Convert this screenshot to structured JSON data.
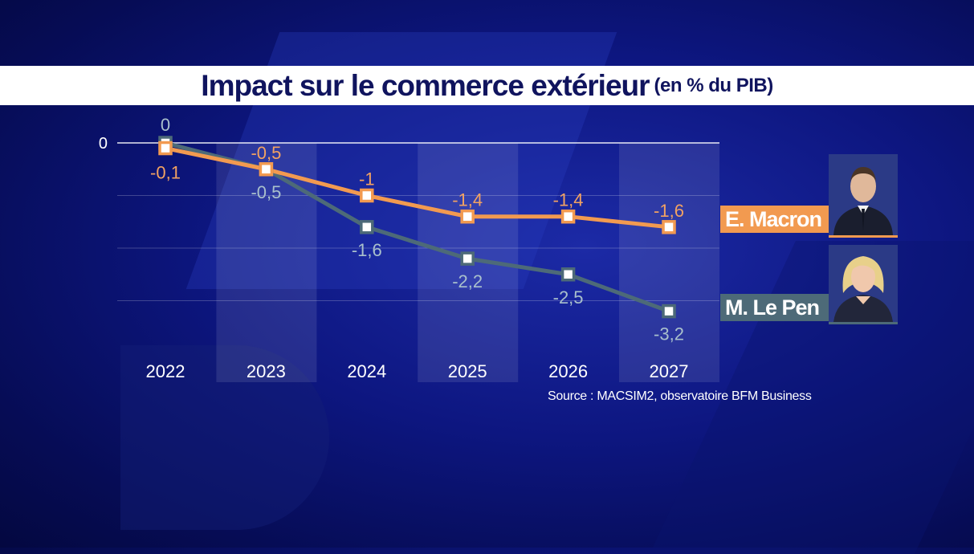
{
  "header": {
    "title": "Impact sur le commerce extérieur",
    "subtitle": "(en % du PIB)"
  },
  "source": "Source : MACSIM2, observatoire BFM Business",
  "legend": {
    "macron": "E. Macron",
    "lepen": "M. Le Pen"
  },
  "colors": {
    "macron": "#f29a50",
    "lepen": "#4d6a78",
    "background": "#0d1680",
    "title_text": "#10145e"
  },
  "chart_data": {
    "type": "line",
    "title": "Impact sur le commerce extérieur (en % du PIB)",
    "categories": [
      "2022",
      "2023",
      "2024",
      "2025",
      "2026",
      "2027"
    ],
    "ylim": [
      -3.6,
      0
    ],
    "y_ticks": [
      "0"
    ],
    "grid": true,
    "legend_position": "right",
    "series": [
      {
        "name": "E. Macron",
        "key": "macron",
        "values": [
          -0.1,
          -0.5,
          -1,
          -1.4,
          -1.4,
          -1.6
        ],
        "labels": [
          "-0,1",
          "-0,5",
          "-1",
          "-1,4",
          "-1,4",
          "-1,6"
        ]
      },
      {
        "name": "M. Le Pen",
        "key": "lepen",
        "values": [
          0,
          -0.5,
          -1.6,
          -2.2,
          -2.5,
          -3.2
        ],
        "labels": [
          "0",
          "-0,5",
          "-1,6",
          "-2,2",
          "-2,5",
          "-3,2"
        ]
      }
    ]
  }
}
